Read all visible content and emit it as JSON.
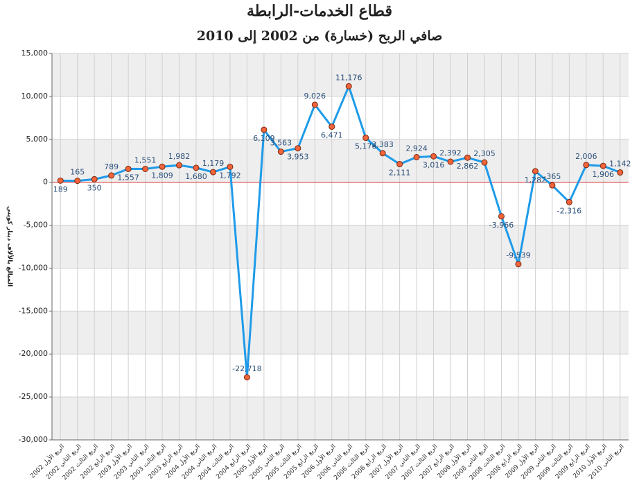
{
  "chart_data": {
    "type": "line",
    "title": "قطاع الخدمات-الرابطة",
    "subtitle": "صافي الربح (خسارة) من 2002 إلى 2010",
    "y_label": "المبالغ بالألاف دينار كويتي",
    "categories": [
      "2002 الربع الأول",
      "2002 الربع الثاني",
      "2002 الربع الثالث",
      "2002 الربع الرابع",
      "2003 الربع الأول",
      "2003 الربع الثاني",
      "2003 الربع الثالث",
      "2003 الربع الرابع",
      "2004 الربع الأول",
      "2004 الربع الثاني",
      "2004 الربع الثالث",
      "2004 الربع الرابع",
      "2005 الربع الأول",
      "2005 الربع الثاني",
      "2005 الربع الثالث",
      "2005 الربع الرابع",
      "2006 الربع الأول",
      "2006 الربع الثاني",
      "2006 الربع الثالث",
      "2006 الربع الرابع",
      "2007 الربع الأول",
      "2007 الربع الثاني",
      "2007 الربع الثالث",
      "2007 الربع الرابع",
      "2008 الربع الأول",
      "2008 الربع الثاني",
      "2008 الربع الثالث",
      "2008 الربع الرابع",
      "2009 الربع الأول",
      "2009 الربع الثاني",
      "2009 الربع الثالث",
      "2009 الربع الرابع",
      "2010 الربع الأول",
      "2010 الربع الثاني"
    ],
    "values": [
      189,
      165,
      350,
      789,
      1557,
      1551,
      1809,
      1982,
      1680,
      1179,
      1792,
      -22718,
      6109,
      3563,
      3953,
      9026,
      6471,
      11176,
      5176,
      3383,
      2111,
      2924,
      3016,
      2392,
      2862,
      2305,
      -3966,
      -9539,
      1282,
      -365,
      -2316,
      2006,
      1906,
      1142
    ],
    "value_labels": [
      "189",
      "165",
      "350",
      "789",
      "1,557",
      "1,551",
      "1,809",
      "1,982",
      "1,680",
      "1,179",
      "1,792",
      "-22,718",
      "6,109",
      "3,563",
      "3,953",
      "9,026",
      "6,471",
      "11,176",
      "5,176",
      "3,383",
      "2,111",
      "2,924",
      "3,016",
      "2,392",
      "2,862",
      "2,305",
      "-3,966",
      "-9,539",
      "1,282",
      "-365",
      "-2,316",
      "2,006",
      "1,906",
      "1,142"
    ],
    "color": "#1e9be9",
    "marker_color": "#f0643c",
    "zero_line_color": "#e03030",
    "ylim": [
      -30000,
      15000
    ],
    "yticks": [
      {
        "value": -30000,
        "label": "-30,000"
      },
      {
        "value": -25000,
        "label": "-25,000"
      },
      {
        "value": -20000,
        "label": "-20,000"
      },
      {
        "value": -15000,
        "label": "-15,000"
      },
      {
        "value": -10000,
        "label": "-10,000"
      },
      {
        "value": -5000,
        "label": "-5,000"
      },
      0,
      {
        "value": 5000,
        "label": "5,000"
      },
      {
        "value": 10000,
        "label": "10,000"
      },
      {
        "value": 15000,
        "label": "15,000"
      }
    ],
    "grid": true
  }
}
